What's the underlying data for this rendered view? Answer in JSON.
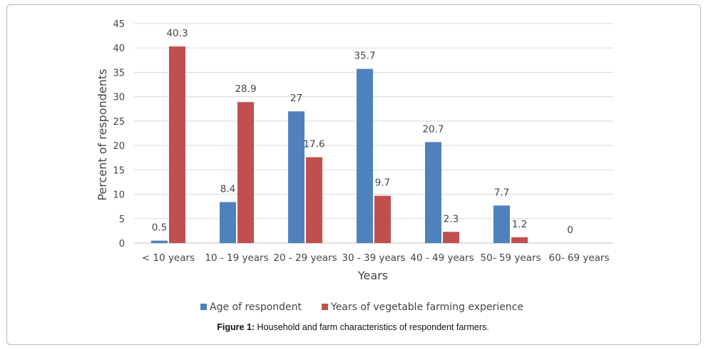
{
  "chart_data": {
    "type": "bar",
    "categories": [
      "< 10 years",
      "10 - 19 years",
      "20 - 29 years",
      "30 - 39 years",
      "40 - 49 years",
      "50- 59 years",
      "60- 69 years"
    ],
    "series": [
      {
        "name": "Age  of respondent",
        "color": "#4f81bd",
        "values": [
          0.5,
          8.4,
          27,
          35.7,
          20.7,
          7.7,
          0
        ]
      },
      {
        "name": "Years of vegetable farming experience",
        "color": "#c0504d",
        "values": [
          40.3,
          28.9,
          17.6,
          9.7,
          2.3,
          1.2,
          null
        ]
      }
    ],
    "data_labels": [
      [
        "0.5",
        "8.4",
        "27",
        "35.7",
        "20.7",
        "7.7",
        "0"
      ],
      [
        "40.3",
        "28.9",
        "17.6",
        "9.7",
        "2.3",
        "1.2",
        ""
      ]
    ],
    "xlabel": "Years",
    "ylabel": "Percent of respondents",
    "ylim": [
      0,
      45
    ],
    "yticks": [
      0,
      5,
      10,
      15,
      20,
      25,
      30,
      35,
      40,
      45
    ],
    "grid": true,
    "legend_position": "bottom"
  },
  "caption": {
    "label": "Figure 1:",
    "text": " Household and farm characteristics of respondent farmers."
  }
}
